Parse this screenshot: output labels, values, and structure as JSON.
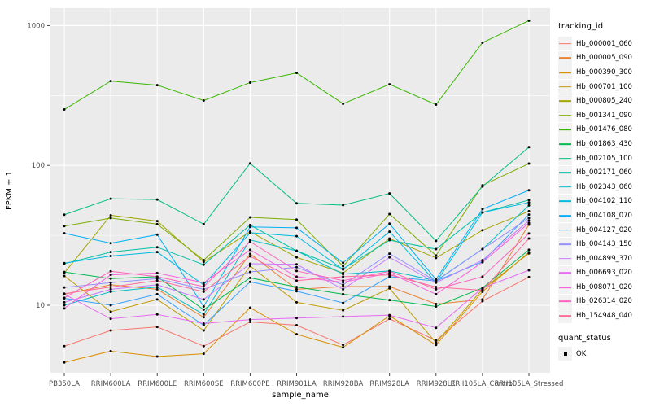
{
  "figure": {
    "x_axis": {
      "title": "sample_name"
    },
    "y_axis": {
      "title": "FPKM + 1"
    },
    "legend": {
      "tracking_title": "tracking_id",
      "quant_title": "quant_status",
      "quant_label": "OK"
    },
    "colors": {
      "panel_bg": "#EBEBEB",
      "grid": "#FFFFFF",
      "axis_text": "#4D4D4D",
      "axis_title": "#000000",
      "tick_mark": "#333333",
      "legend_key_bg": "#F2F2F2",
      "point": "#000000"
    }
  },
  "chart_data": {
    "type": "line",
    "title": "",
    "xlabel": "sample_name",
    "ylabel": "FPKM + 1",
    "y_scale": "log10",
    "ylim": [
      3.3,
      1330
    ],
    "grid": "on",
    "legend_position": "right",
    "legend_title": "tracking_id",
    "quant_status": {
      "title": "quant_status",
      "values": [
        "OK"
      ]
    },
    "y_ticks": [
      {
        "label": "10",
        "v": 10
      },
      {
        "label": "100",
        "v": 100
      },
      {
        "label": "1000",
        "v": 1000
      }
    ],
    "y_minor": [
      31.623,
      316.23
    ],
    "categories": [
      "PB350LA",
      "RRIM600LA",
      "RRIM600LE",
      "RRIM600SE",
      "RRIM600PE",
      "RRIM901LA",
      "RRIM928BA",
      "RRIM928LA",
      "RRIM928LE",
      "RRII105LA_Control",
      "RRII105LA_Stressed"
    ],
    "series": [
      {
        "name": "Hb_000001_060",
        "color": "#F8766D",
        "values": [
          5.1,
          6.6,
          7.0,
          5.1,
          7.6,
          7.2,
          5.2,
          8.0,
          5.6,
          10.7,
          15.9
        ]
      },
      {
        "name": "Hb_000005_090",
        "color": "#EA8331",
        "values": [
          12.0,
          14.0,
          13.0,
          8.2,
          23.3,
          13.0,
          13.6,
          13.6,
          10.2,
          11.0,
          37.7
        ]
      },
      {
        "name": "Hb_000390_300",
        "color": "#D89000",
        "values": [
          3.9,
          4.7,
          4.3,
          4.5,
          9.6,
          6.2,
          5.0,
          8.4,
          5.2,
          12.5,
          23.9
        ]
      },
      {
        "name": "Hb_000701_100",
        "color": "#C09B00",
        "values": [
          16.2,
          9.0,
          11.0,
          6.6,
          19.1,
          10.5,
          9.2,
          13.2,
          5.4,
          13.0,
          23.5
        ]
      },
      {
        "name": "Hb_000805_240",
        "color": "#A3A500",
        "values": [
          17.0,
          44.0,
          40.0,
          20.4,
          33.6,
          22.0,
          17.0,
          30.0,
          21.8,
          34.4,
          47.0
        ]
      },
      {
        "name": "Hb_001341_090",
        "color": "#7CAE00",
        "values": [
          36.8,
          42.0,
          38.0,
          21.0,
          42.5,
          41.0,
          19.0,
          44.9,
          22.7,
          72.0,
          103.0
        ]
      },
      {
        "name": "Hb_001476_080",
        "color": "#39B600",
        "values": [
          251,
          401,
          375,
          291,
          391,
          459,
          276,
          380,
          272,
          755,
          1084
        ]
      },
      {
        "name": "Hb_001863_430",
        "color": "#00BB4E",
        "values": [
          17.3,
          15.5,
          16.0,
          9.3,
          15.7,
          13.5,
          12.0,
          10.9,
          9.8,
          13.3,
          24.9
        ]
      },
      {
        "name": "Hb_002105_100",
        "color": "#00BF7D",
        "values": [
          44.4,
          57.8,
          57.0,
          38.0,
          103.4,
          53.6,
          52.0,
          63.0,
          28.9,
          70.7,
          135.0
        ]
      },
      {
        "name": "Hb_002171_060",
        "color": "#00C1A3",
        "values": [
          19.8,
          24.0,
          26.0,
          19.5,
          37.5,
          24.5,
          18.2,
          29.2,
          25.2,
          46.1,
          56.5
        ]
      },
      {
        "name": "Hb_002343_060",
        "color": "#00BFC4",
        "values": [
          10.0,
          12.5,
          13.5,
          8.6,
          29.3,
          24.5,
          16.7,
          17.6,
          15.0,
          25.2,
          51.7
        ]
      },
      {
        "name": "Hb_004102_110",
        "color": "#00BAE0",
        "values": [
          20.0,
          22.5,
          24.0,
          14.0,
          33.0,
          31.2,
          18.0,
          33.6,
          14.6,
          46.1,
          54.3
        ]
      },
      {
        "name": "Hb_004108_070",
        "color": "#00B0F6",
        "values": [
          32.7,
          27.8,
          32.0,
          9.8,
          36.3,
          35.8,
          20.1,
          38.3,
          15.3,
          48.7,
          66.4
        ]
      },
      {
        "name": "Hb_004127_020",
        "color": "#35A2FF",
        "values": [
          11.2,
          10.0,
          12.0,
          7.2,
          14.7,
          12.6,
          10.4,
          16.0,
          14.9,
          20.5,
          44.5
        ]
      },
      {
        "name": "Hb_004143_150",
        "color": "#9590FF",
        "values": [
          13.4,
          14.5,
          15.5,
          13.0,
          17.3,
          18.7,
          14.0,
          23.4,
          14.9,
          25.2,
          42.0
        ]
      },
      {
        "name": "Hb_004899_370",
        "color": "#C77CFF",
        "values": [
          10.5,
          13.0,
          14.0,
          11.0,
          19.8,
          19.6,
          13.0,
          22.0,
          14.5,
          21.0,
          40.3
        ]
      },
      {
        "name": "Hb_006693_020",
        "color": "#E76BF3",
        "values": [
          12.0,
          8.0,
          8.6,
          7.4,
          7.9,
          8.1,
          8.3,
          8.5,
          6.9,
          13.3,
          17.8
        ]
      },
      {
        "name": "Hb_008071_020",
        "color": "#FA62DB",
        "values": [
          9.5,
          16.5,
          17.0,
          14.5,
          24.9,
          16.0,
          14.6,
          17.0,
          12.0,
          20.3,
          38.7
        ]
      },
      {
        "name": "Hb_026314_020",
        "color": "#FF62BC",
        "values": [
          11.3,
          17.5,
          16.0,
          13.6,
          28.5,
          17.6,
          15.0,
          17.5,
          13.0,
          16.0,
          32.6
        ]
      },
      {
        "name": "Hb_154948_040",
        "color": "#FF6A98",
        "values": [
          12.1,
          13.5,
          15.0,
          12.5,
          22.4,
          15.0,
          16.0,
          16.5,
          13.5,
          12.8,
          30.0
        ]
      }
    ]
  }
}
